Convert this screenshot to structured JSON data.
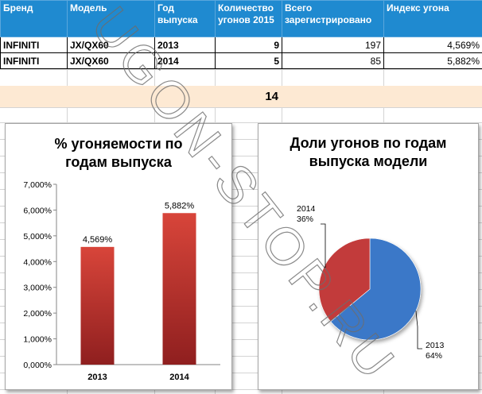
{
  "table": {
    "headers": [
      "Бренд",
      "Модель",
      "Год выпуска",
      "Количество угонов 2015",
      "Всего зарегистрировано",
      "Индекс угона"
    ],
    "rows": [
      [
        "INFINITI",
        "JX/QX60",
        "2013",
        "9",
        "197",
        "4,569%"
      ],
      [
        "INFINITI",
        "JX/QX60",
        "2014",
        "5",
        "85",
        "5,882%"
      ]
    ],
    "total": "14"
  },
  "watermark": "UGON-STOP.RU",
  "colors": {
    "header_bg": "#1f8ad0",
    "bar_fill": "#c0392b",
    "pie_2013": "#3a78c8",
    "pie_2014": "#c23b3b",
    "highlight_row": "#fde9d3"
  },
  "chart_data": [
    {
      "type": "bar",
      "title": "% угоняемости  по\nгодам выпуска",
      "categories": [
        "2013",
        "2014"
      ],
      "values": [
        4.569,
        5.882
      ],
      "data_labels": [
        "4,569%",
        "5,882%"
      ],
      "ylim": [
        0,
        7
      ],
      "yticks": [
        0,
        1,
        2,
        3,
        4,
        5,
        6,
        7
      ],
      "ytick_labels": [
        "0,000%",
        "1,000%",
        "2,000%",
        "3,000%",
        "4,000%",
        "5,000%",
        "6,000%",
        "7,000%"
      ],
      "grid": false
    },
    {
      "type": "pie",
      "title": "Доли угонов  по годам\nвыпуска модели",
      "slices": [
        {
          "label": "2013",
          "value": 64,
          "pct_label": "64%"
        },
        {
          "label": "2014",
          "value": 36,
          "pct_label": "36%"
        }
      ]
    }
  ]
}
